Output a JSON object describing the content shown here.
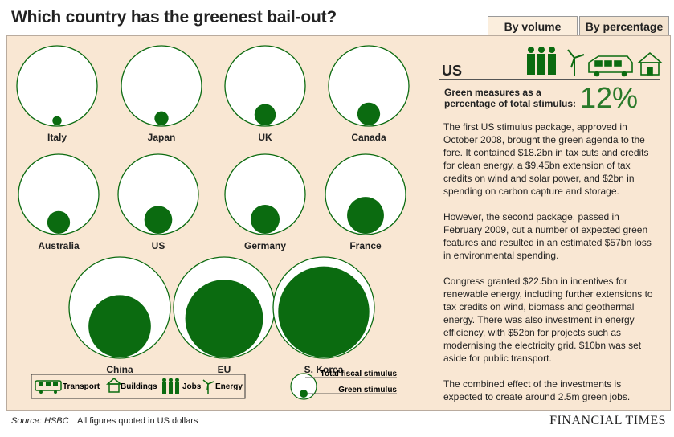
{
  "title": "Which country has the greenest bail-out?",
  "tabs": [
    {
      "label": "By volume",
      "active": false
    },
    {
      "label": "By percentage",
      "active": true
    }
  ],
  "colors": {
    "green": "#0b6b10",
    "panel": "#f9e7d3",
    "value_green": "#2a7a2a"
  },
  "chart_data": {
    "type": "proportional-circle",
    "measure": "Green stimulus as a percentage of total fiscal stimulus",
    "categories": [
      "Italy",
      "Japan",
      "UK",
      "Canada",
      "Australia",
      "US",
      "Germany",
      "France",
      "China",
      "EU",
      "S. Korea"
    ],
    "values": [
      1.3,
      3,
      7,
      8,
      8,
      12,
      13,
      21,
      38,
      59,
      81
    ],
    "unit": "%",
    "legend": {
      "total": "Total fiscal stimulus",
      "green": "Green stimulus"
    }
  },
  "key_items": [
    {
      "label": "Transport",
      "icon": "transport-icon"
    },
    {
      "label": "Buildings",
      "icon": "buildings-icon"
    },
    {
      "label": "Jobs",
      "icon": "jobs-icon"
    },
    {
      "label": "Energy",
      "icon": "energy-icon"
    }
  ],
  "sidebar": {
    "country": "US",
    "measure_label": "Green measures as a percentage of total stimulus:",
    "measure_value": "12%",
    "paragraphs": [
      "The first US stimulus package, approved in October 2008, brought the green agenda to the fore. It contained $18.2bn in tax cuts and credits for clean energy, a $9.45bn extension of tax credits on wind and solar power, and $2bn in spending on carbon capture and storage.",
      "However, the second package, passed in February 2009, cut a number of expected green features and resulted in an estimated $57bn loss in environmental spending.",
      "Congress granted $22.5bn in incentives for renewable energy, including further extensions to tax credits on wind, biomass and geothermal energy. There was also investment in energy efficiency, with $52bn for projects such as modernising the electricity grid. $10bn was set aside for public transport.",
      "The combined effect of the investments is expected to create around 2.5m green jobs."
    ]
  },
  "footer": {
    "source": "Source: HSBC",
    "note": "All figures quoted in US dollars",
    "brand": "FINANCIAL TIMES"
  }
}
